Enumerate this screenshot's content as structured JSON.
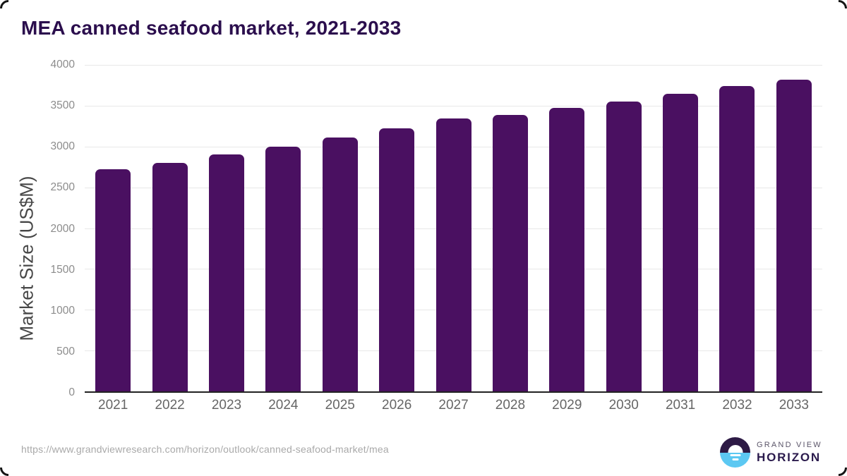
{
  "page": {
    "title": "MEA canned seafood market, 2021-2033"
  },
  "chart_data": {
    "type": "bar",
    "title": "MEA canned seafood market, 2021-2033",
    "categories": [
      "2021",
      "2022",
      "2023",
      "2024",
      "2025",
      "2026",
      "2027",
      "2028",
      "2029",
      "2030",
      "2031",
      "2032",
      "2033"
    ],
    "values": [
      2720,
      2800,
      2900,
      3000,
      3110,
      3220,
      3340,
      3390,
      3470,
      3550,
      3650,
      3740,
      3820
    ],
    "xlabel": "",
    "ylabel": "Market Size (US$M)",
    "ylim": [
      0,
      4000
    ],
    "yticks": [
      0,
      500,
      1000,
      1500,
      2000,
      2500,
      3000,
      3500,
      4000
    ],
    "grid": true,
    "legend_position": "none",
    "bar_color": "#4a1061"
  },
  "footer": {
    "source_url": "https://www.grandviewresearch.com/horizon/outlook/canned-seafood-market/mea",
    "logo": {
      "top_text": "GRAND VIEW",
      "bottom_text": "HORIZON"
    }
  },
  "colors": {
    "bar": "#4a1061",
    "title_text": "#2b0e4d",
    "gridline": "#e8e8e8",
    "axis_line": "#222222",
    "y_tick_text": "#8c8c8c",
    "x_tick_text": "#666666",
    "y_axis_title_text": "#474747",
    "url_text": "#a9a9a9",
    "logo_dark": "#2d1a45",
    "logo_blue": "#5cc8f2"
  }
}
